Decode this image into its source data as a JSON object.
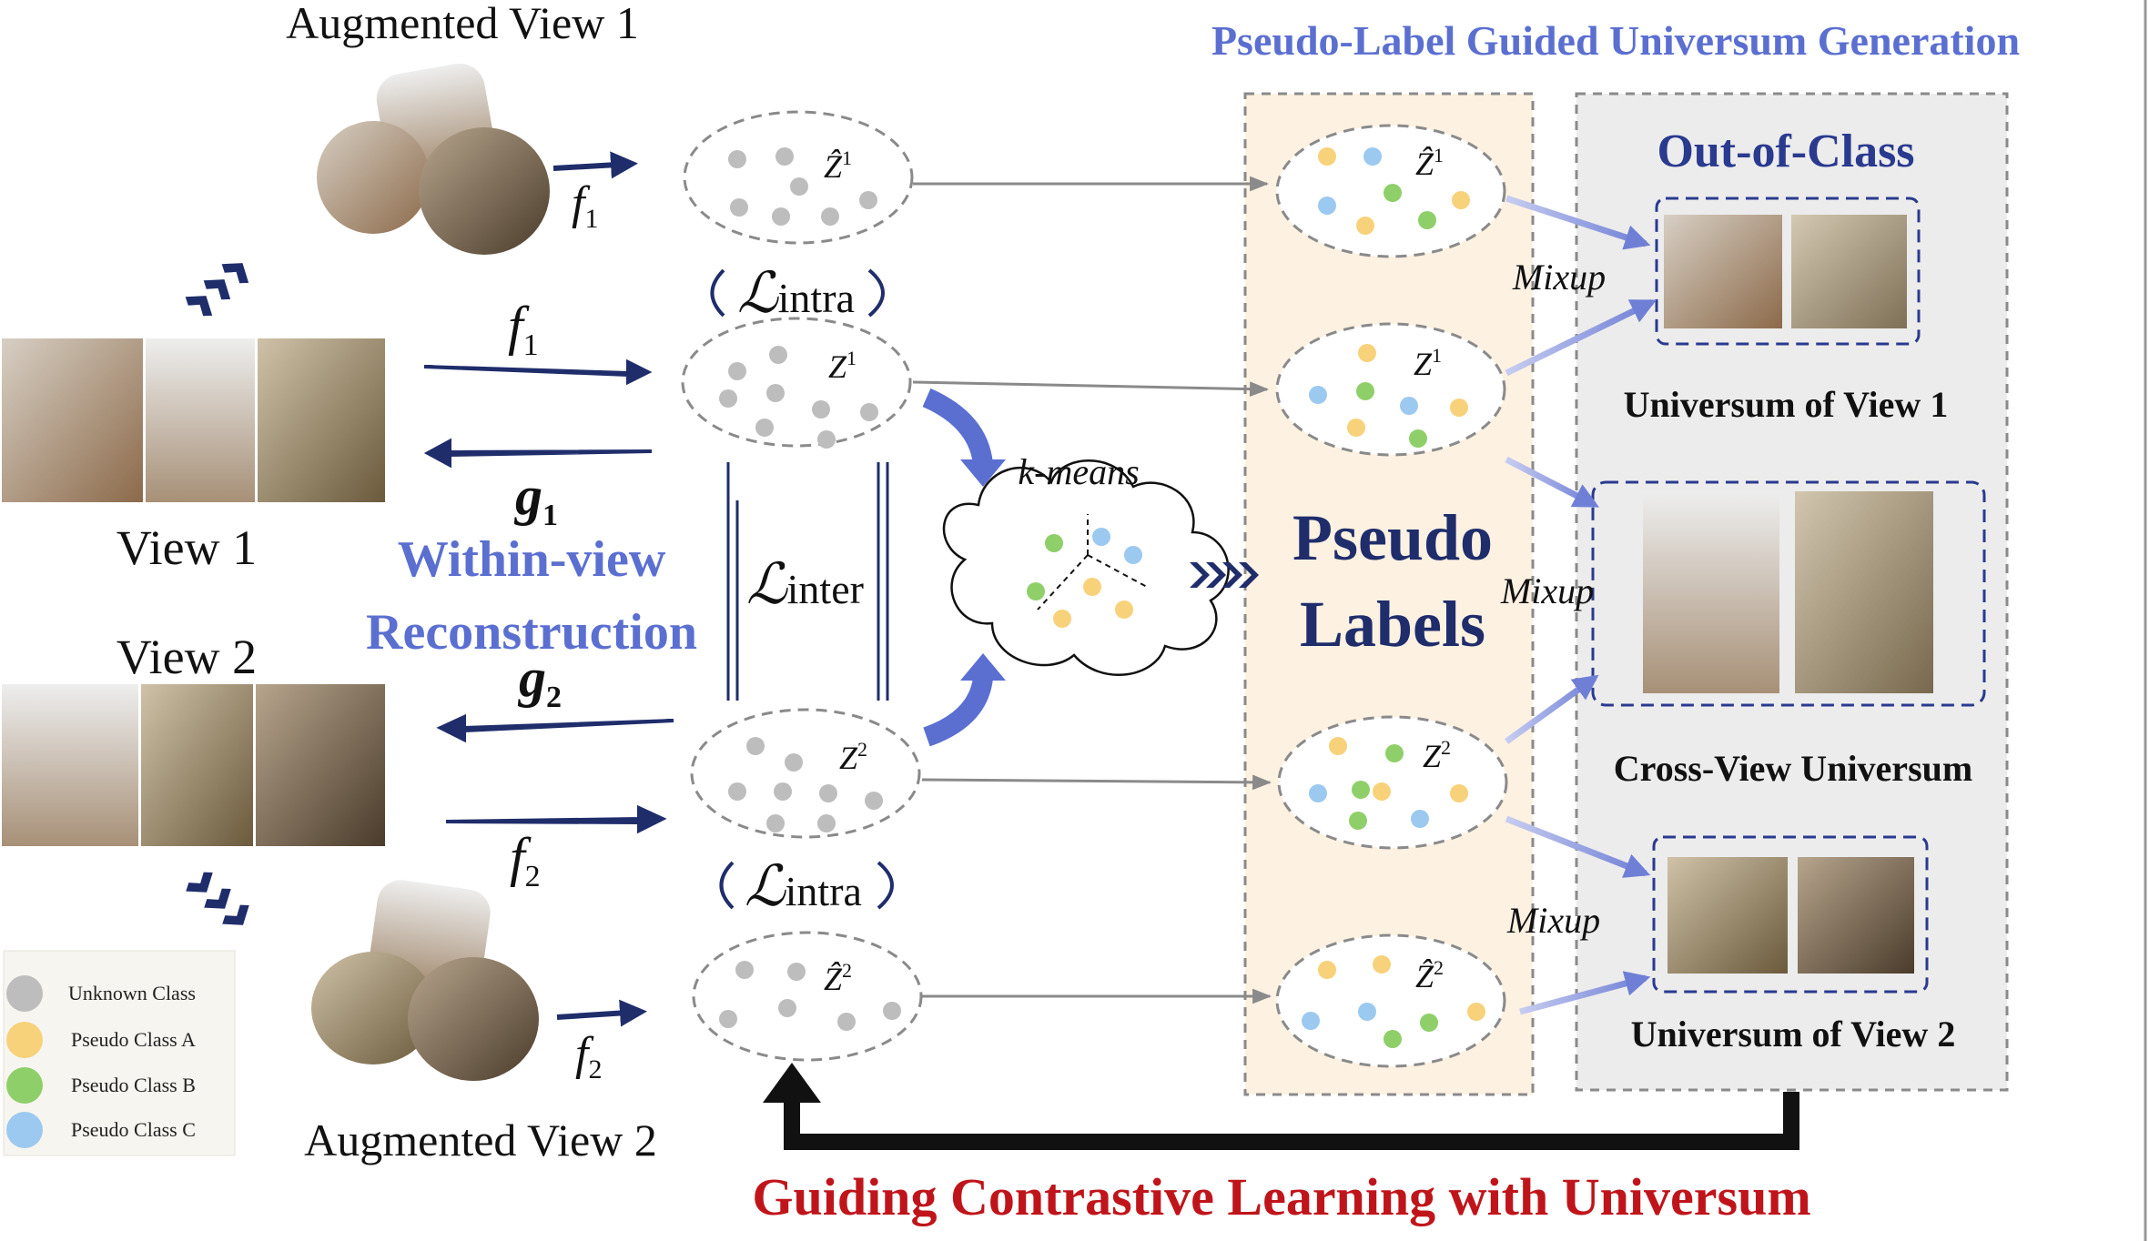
{
  "title_guided": "Pseudo-Label Guided Universum Generation",
  "views": {
    "aug_view_1": "Augmented View 1",
    "view_1": "View 1",
    "view_2": "View 2",
    "aug_view_2": "Augmented View 2"
  },
  "functions": {
    "f1": "f",
    "f1_sub": "1",
    "g1": "g",
    "g1_sub": "1",
    "g2": "g",
    "g2_sub": "2",
    "f2": "f",
    "f2_sub": "2"
  },
  "within_view": [
    "Within-view",
    "Reconstruction"
  ],
  "latents": {
    "zhat1": "Ẑ",
    "zhat1_sup": "1",
    "z1": "Z",
    "z1_sup": "1",
    "z2": "Z",
    "z2_sup": "2",
    "zhat2": "Ẑ",
    "zhat2_sup": "2"
  },
  "losses": {
    "intra_top": "ℒ",
    "intra_top_sub": "intra",
    "inter": "ℒ",
    "inter_sub": "inter",
    "intra_bottom": "ℒ",
    "intra_bottom_sub": "intra"
  },
  "kmeans": "k-means",
  "pseudo_labels": [
    "Pseudo",
    "Labels"
  ],
  "out_of_class": "Out-of-Class",
  "mixup": "Mixup",
  "universum": {
    "view1": "Universum of View 1",
    "cross": "Cross-View Universum",
    "view2": "Universum of View 2"
  },
  "guiding": "Guiding Contrastive Learning with Universum",
  "legend": [
    {
      "label": "Unknown Class",
      "color": "#bdbdbd"
    },
    {
      "label": "Pseudo Class A",
      "color": "#f7d27a"
    },
    {
      "label": "Pseudo Class B",
      "color": "#8fcf6a"
    },
    {
      "label": "Pseudo Class C",
      "color": "#9cc9ef"
    }
  ],
  "colors": {
    "navy": "#1f2d6b",
    "blue_accent": "#5b6fd1",
    "red": "#c0141b",
    "pseudo_panel": "#fdf1e2",
    "universum_panel": "#ececec"
  },
  "icons": {
    "photo": "photo-thumbnail",
    "chevrons": "chevron-right-icon",
    "arrow": "arrow-icon"
  }
}
